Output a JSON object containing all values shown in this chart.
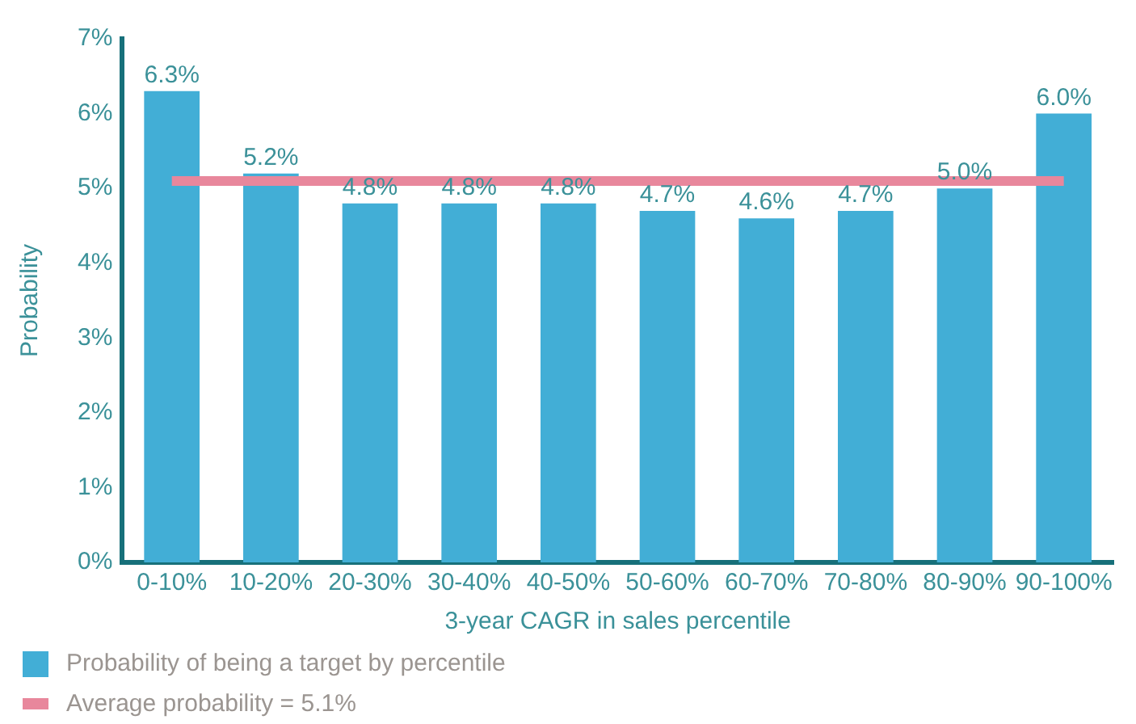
{
  "chart_data": {
    "type": "bar",
    "xlabel": "3-year CAGR in sales percentile",
    "ylabel": "Probability",
    "categories": [
      "0-10%",
      "10-20%",
      "20-30%",
      "30-40%",
      "40-50%",
      "50-60%",
      "60-70%",
      "70-80%",
      "80-90%",
      "90-100%"
    ],
    "series": [
      {
        "name": "Probability of being a target by percentile",
        "color": "#42aed6",
        "values": [
          6.3,
          5.2,
          4.8,
          4.8,
          4.8,
          4.7,
          4.6,
          4.7,
          5.0,
          6.0
        ],
        "value_labels": [
          "6.3%",
          "5.2%",
          "4.8%",
          "4.8%",
          "4.8%",
          "4.7%",
          "4.6%",
          "4.7%",
          "5.0%",
          "6.0%"
        ]
      },
      {
        "type": "line",
        "name": "Average probability = 5.1%",
        "color": "#e8879c",
        "values": [
          5.1,
          5.1,
          5.1,
          5.1,
          5.1,
          5.1,
          5.1,
          5.1,
          5.1,
          5.1
        ]
      }
    ],
    "ylim": [
      0,
      7
    ],
    "yticks": [
      {
        "value": 0,
        "label": "0%"
      },
      {
        "value": 1,
        "label": "1%"
      },
      {
        "value": 2,
        "label": "2%"
      },
      {
        "value": 3,
        "label": "3%"
      },
      {
        "value": 4,
        "label": "4%"
      },
      {
        "value": 5,
        "label": "5%"
      },
      {
        "value": 6,
        "label": "6%"
      },
      {
        "value": 7,
        "label": "7%"
      }
    ],
    "legend": "bottom",
    "marker": "none"
  }
}
